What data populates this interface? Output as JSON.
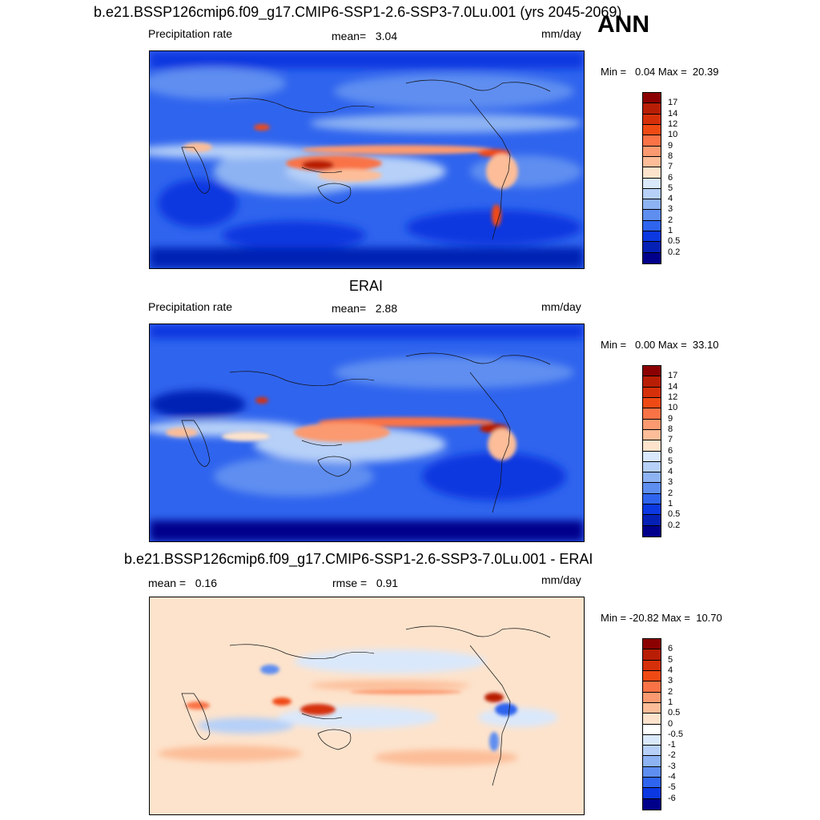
{
  "page": {
    "title_top": "b.e21.BSSP126cmip6.f09_g17.CMIP6-SSP1-2.6-SSP3-7.0Lu.001 (yrs 2045-2069)",
    "season": "ANN",
    "title_obs": "ERAI",
    "title_diff": "b.e21.BSSP126cmip6.f09_g17.CMIP6-SSP1-2.6-SSP3-7.0Lu.001 - ERAI"
  },
  "panels": [
    {
      "left_label": "Precipitation rate",
      "center_label": "mean=   3.04",
      "units": "mm/day",
      "minmax": "Min =   0.04 Max =  20.39"
    },
    {
      "left_label": "Precipitation rate",
      "center_label": "mean=   2.88",
      "units": "mm/day",
      "minmax": "Min =   0.00 Max =  33.10"
    },
    {
      "left_label": "mean =   0.16",
      "center_label": "rmse =   0.91",
      "units": "mm/day",
      "minmax": "Min = -20.82 Max =  10.70"
    }
  ],
  "colorbars": {
    "precip": {
      "levels": [
        "17",
        "14",
        "12",
        "10",
        "9",
        "8",
        "7",
        "6",
        "5",
        "4",
        "3",
        "2",
        "1",
        "0.5",
        "0.2"
      ],
      "colors": [
        "#8b0000",
        "#b81e05",
        "#d6300a",
        "#f04a14",
        "#f97346",
        "#fb9a70",
        "#fcbd98",
        "#fde3cc",
        "#dae8fb",
        "#b6d0f8",
        "#8db3f3",
        "#5e8ef0",
        "#2f64ee",
        "#0b38e0",
        "#0520b4",
        "#00008b"
      ]
    },
    "diff": {
      "levels": [
        "6",
        "5",
        "4",
        "3",
        "2",
        "1",
        "0.5",
        "0",
        "-0.5",
        "-1",
        "-2",
        "-3",
        "-4",
        "-5",
        "-6"
      ],
      "colors": [
        "#8b0000",
        "#b81e05",
        "#d6300a",
        "#f04a14",
        "#f97346",
        "#fb9a70",
        "#fcbd98",
        "#fde3cc",
        "#ffffff",
        "#dae8fb",
        "#b6d0f8",
        "#8db3f3",
        "#5e8ef0",
        "#2f64ee",
        "#0b38e0",
        "#00008b"
      ]
    }
  },
  "chart_data": [
    {
      "type": "heatmap",
      "title": "b.e21.BSSP126cmip6.f09_g17.CMIP6-SSP1-2.6-SSP3-7.0Lu.001 (yrs 2045-2069)",
      "variable": "Precipitation rate",
      "units": "mm/day",
      "mean": 3.04,
      "min": 0.04,
      "max": 20.39,
      "levels": [
        0.2,
        0.5,
        1,
        2,
        3,
        4,
        5,
        6,
        7,
        8,
        9,
        10,
        12,
        14,
        17
      ]
    },
    {
      "type": "heatmap",
      "title": "ERAI",
      "variable": "Precipitation rate",
      "units": "mm/day",
      "mean": 2.88,
      "min": 0.0,
      "max": 33.1,
      "levels": [
        0.2,
        0.5,
        1,
        2,
        3,
        4,
        5,
        6,
        7,
        8,
        9,
        10,
        12,
        14,
        17
      ]
    },
    {
      "type": "heatmap",
      "title": "b.e21.BSSP126cmip6.f09_g17.CMIP6-SSP1-2.6-SSP3-7.0Lu.001 - ERAI",
      "units": "mm/day",
      "mean": 0.16,
      "rmse": 0.91,
      "min": -20.82,
      "max": 10.7,
      "levels": [
        -6,
        -5,
        -4,
        -3,
        -2,
        -1,
        -0.5,
        0,
        0.5,
        1,
        2,
        3,
        4,
        5,
        6
      ]
    }
  ]
}
